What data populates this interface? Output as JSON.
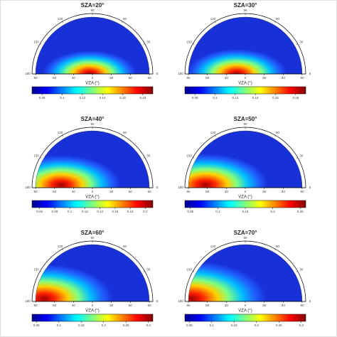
{
  "chart_data": {
    "type": "polar-heatmap",
    "vza_ticks": [
      90,
      60,
      30,
      0,
      30,
      60,
      90
    ],
    "raa_ticks": [
      0,
      30,
      60,
      90,
      120,
      150,
      180
    ],
    "panels": [
      {
        "title": "SZA=20°",
        "xlabel": "VZA (°)",
        "clim": [
          0.07,
          0.19
        ],
        "cticks": [
          0.08,
          0.1,
          0.12,
          0.14,
          0.16,
          0.18
        ]
      },
      {
        "title": "SZA=30°",
        "xlabel": "VZA (°)",
        "clim": [
          0.07,
          0.19
        ],
        "cticks": [
          0.08,
          0.1,
          0.12,
          0.14,
          0.16,
          0.18
        ]
      },
      {
        "title": "SZA=40°",
        "xlabel": "VZA (°)",
        "clim": [
          0.05,
          0.21
        ],
        "cticks": [
          0.06,
          0.08,
          0.1,
          0.12,
          0.14,
          0.16,
          0.18,
          0.2
        ]
      },
      {
        "title": "SZA=50°",
        "xlabel": "VZA (°)",
        "clim": [
          0.04,
          0.26
        ],
        "cticks": [
          0.05,
          0.1,
          0.15,
          0.2,
          0.25
        ]
      },
      {
        "title": "SZA=60°",
        "xlabel": "VZA (°)",
        "clim": [
          0.04,
          0.31
        ],
        "cticks": [
          0.05,
          0.1,
          0.15,
          0.2,
          0.25,
          0.3
        ]
      },
      {
        "title": "SZA=70°",
        "xlabel": "VZA (°)",
        "clim": [
          0.04,
          0.31
        ],
        "cticks": [
          0.05,
          0.1,
          0.15,
          0.2,
          0.25,
          0.3
        ]
      }
    ]
  }
}
